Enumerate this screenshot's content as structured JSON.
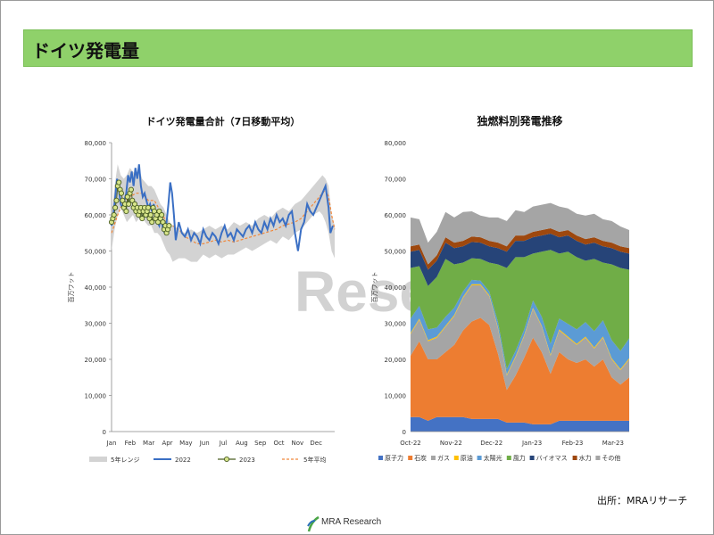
{
  "header": {
    "title": "ドイツ発電量"
  },
  "watermark": "Rese",
  "source": "出所：MRAリサーチ",
  "logo": {
    "text": "MRA Research"
  },
  "chart_data": [
    {
      "type": "line",
      "title": "ドイツ発電量合計（7日移動平均）",
      "ylabel": "百万ワット",
      "ylim": [
        0,
        80000
      ],
      "yticks": [
        0,
        10000,
        20000,
        30000,
        40000,
        50000,
        60000,
        70000,
        80000
      ],
      "ytick_labels": [
        "0",
        "10,000",
        "20,000",
        "30,000",
        "40,000",
        "50,000",
        "60,000",
        "70,000",
        "80,000"
      ],
      "xlim": [
        0,
        365
      ],
      "month_labels": [
        "Jan",
        "Feb",
        "Mar",
        "Apr",
        "May",
        "Jun",
        "Jul",
        "Aug",
        "Sep",
        "Oct",
        "Nov",
        "Dec"
      ],
      "legend_position": "bottom",
      "legend": [
        "5年レンジ",
        "2022",
        "2023",
        "5年平均"
      ],
      "colors": {
        "range": "#d3d3d3",
        "y2022": "#3a6fc4",
        "y2023_line": "#4a5e22",
        "y2023_fill": "#d7e48a",
        "avg": "#f0883c"
      },
      "range_band": {
        "days": [
          0,
          5,
          10,
          15,
          20,
          25,
          30,
          35,
          40,
          45,
          50,
          55,
          60,
          65,
          70,
          75,
          80,
          85,
          90,
          95,
          100,
          110,
          120,
          130,
          140,
          150,
          160,
          170,
          180,
          190,
          200,
          210,
          220,
          230,
          240,
          250,
          260,
          270,
          280,
          290,
          300,
          310,
          320,
          330,
          340,
          345,
          350,
          355,
          360,
          365
        ],
        "low": [
          50000,
          56000,
          60000,
          62000,
          60000,
          58000,
          59000,
          60000,
          58000,
          59000,
          60000,
          58000,
          57000,
          57000,
          55000,
          55000,
          54000,
          52000,
          50000,
          49000,
          47000,
          48000,
          48000,
          47000,
          47000,
          49000,
          48000,
          49000,
          48000,
          49000,
          49000,
          50000,
          51000,
          50000,
          51000,
          52000,
          53000,
          52000,
          54000,
          53000,
          55000,
          56000,
          58000,
          60000,
          61000,
          60000,
          58000,
          55000,
          50000,
          48000
        ],
        "high": [
          60000,
          68000,
          74000,
          71000,
          70000,
          71000,
          73000,
          72000,
          71000,
          73000,
          70000,
          69000,
          68000,
          68000,
          67000,
          65000,
          63000,
          62000,
          60000,
          58000,
          57000,
          56000,
          55000,
          56000,
          55000,
          56000,
          57000,
          56000,
          57000,
          56000,
          58000,
          57000,
          58000,
          57000,
          59000,
          60000,
          59000,
          61000,
          62000,
          61000,
          63000,
          64000,
          66000,
          68000,
          70000,
          71000,
          70000,
          68000,
          60000,
          57000
        ]
      },
      "series": [
        {
          "name": "2022",
          "x": [
            0,
            3,
            6,
            9,
            12,
            15,
            18,
            21,
            24,
            27,
            30,
            33,
            36,
            39,
            42,
            45,
            48,
            51,
            54,
            57,
            60,
            63,
            66,
            69,
            72,
            75,
            78,
            81,
            84,
            87,
            90,
            93,
            96,
            99,
            102,
            105,
            110,
            115,
            120,
            125,
            130,
            135,
            140,
            145,
            150,
            155,
            160,
            165,
            170,
            175,
            180,
            185,
            190,
            195,
            200,
            205,
            210,
            215,
            220,
            225,
            230,
            235,
            240,
            245,
            250,
            255,
            260,
            265,
            270,
            275,
            280,
            285,
            290,
            295,
            300,
            305,
            310,
            315,
            320,
            325,
            330,
            335,
            340,
            345,
            350,
            355,
            358,
            362
          ],
          "values": [
            57000,
            60000,
            65000,
            70000,
            67000,
            63000,
            62000,
            64000,
            66000,
            71000,
            69000,
            72000,
            68000,
            73000,
            70000,
            74000,
            68000,
            65000,
            66000,
            64000,
            62000,
            63000,
            61000,
            63000,
            60000,
            58000,
            57000,
            60000,
            56000,
            55000,
            58000,
            63000,
            69000,
            66000,
            60000,
            53000,
            58000,
            55000,
            54000,
            56000,
            53000,
            55000,
            54000,
            52000,
            56000,
            54000,
            53000,
            55000,
            54000,
            52000,
            55000,
            57000,
            54000,
            55000,
            53000,
            56000,
            55000,
            54000,
            56000,
            57000,
            55000,
            58000,
            56000,
            55000,
            58000,
            56000,
            59000,
            57000,
            60000,
            58000,
            59000,
            57000,
            60000,
            61000,
            55000,
            50000,
            56000,
            58000,
            63000,
            61000,
            60000,
            62000,
            64000,
            66000,
            68000,
            62000,
            55000,
            57000
          ]
        },
        {
          "name": "2023",
          "x": [
            0,
            2,
            4,
            6,
            8,
            10,
            12,
            14,
            16,
            18,
            20,
            22,
            24,
            26,
            28,
            30,
            32,
            34,
            36,
            38,
            40,
            42,
            44,
            46,
            48,
            50,
            52,
            54,
            56,
            58,
            60,
            62,
            64,
            66,
            68,
            70,
            72,
            74,
            76,
            78,
            80,
            82,
            84,
            86,
            88,
            90,
            92,
            94
          ],
          "values": [
            58000,
            59000,
            60000,
            62000,
            64000,
            68000,
            69000,
            67000,
            66000,
            64000,
            62000,
            63000,
            61000,
            65000,
            63000,
            66000,
            67000,
            64000,
            62000,
            63000,
            61000,
            62000,
            60000,
            61000,
            62000,
            59000,
            61000,
            62000,
            60000,
            61000,
            62000,
            59000,
            60000,
            58000,
            62000,
            61000,
            59000,
            60000,
            58000,
            61000,
            59000,
            60000,
            58000,
            56000,
            57000,
            55000,
            56000,
            57000
          ]
        },
        {
          "name": "5年平均",
          "x": [
            0,
            10,
            20,
            30,
            40,
            50,
            60,
            70,
            80,
            90,
            100,
            110,
            120,
            130,
            140,
            150,
            160,
            170,
            180,
            190,
            200,
            210,
            220,
            230,
            240,
            250,
            260,
            270,
            280,
            290,
            300,
            310,
            320,
            330,
            340,
            350,
            355,
            360,
            365
          ],
          "values": [
            55000,
            60000,
            64000,
            65000,
            66000,
            66000,
            64000,
            64000,
            61000,
            58000,
            57000,
            56000,
            54000,
            53000,
            52000,
            52000,
            52500,
            53000,
            52500,
            53000,
            52500,
            53000,
            53500,
            54000,
            54500,
            55000,
            55500,
            56000,
            57000,
            57500,
            58000,
            59000,
            61000,
            63000,
            65000,
            67000,
            65000,
            60000,
            56000
          ]
        }
      ]
    },
    {
      "type": "area",
      "title": "独燃料別発電推移",
      "ylabel": "百万ワット",
      "ylim": [
        0,
        80000
      ],
      "yticks": [
        0,
        10000,
        20000,
        30000,
        40000,
        50000,
        60000,
        70000,
        80000
      ],
      "ytick_labels": [
        "0",
        "10,000",
        "20,000",
        "30,000",
        "40,000",
        "50,000",
        "60,000",
        "70,000",
        "80,000"
      ],
      "x_labels": [
        "Oct-22",
        "Nov-22",
        "Dec-22",
        "Jan-23",
        "Feb-23",
        "Mar-23"
      ],
      "legend_position": "bottom",
      "stacked": true,
      "time": [
        0,
        4,
        8,
        12,
        16,
        20,
        24,
        28,
        32,
        36,
        40,
        44,
        48,
        52,
        56,
        60,
        64,
        68,
        72,
        76,
        80,
        84,
        88,
        92,
        96,
        100
      ],
      "series": [
        {
          "name": "原子力",
          "color": "#4472c4",
          "values": [
            4000,
            4000,
            3000,
            4000,
            4000,
            4000,
            4000,
            3500,
            3500,
            3500,
            3500,
            2500,
            2500,
            2500,
            2000,
            2000,
            2000,
            3000,
            3000,
            3000,
            3000,
            3000,
            3000,
            3000,
            3000,
            3000
          ]
        },
        {
          "name": "石炭",
          "color": "#ed7d31",
          "values": [
            17000,
            21000,
            17000,
            16000,
            18000,
            20000,
            24000,
            27000,
            28000,
            26000,
            18000,
            9000,
            13000,
            18000,
            24000,
            20000,
            14000,
            19000,
            17000,
            16000,
            17000,
            15000,
            17000,
            12000,
            10000,
            12000
          ]
        },
        {
          "name": "ガス",
          "color": "#a5a5a5",
          "values": [
            6000,
            6000,
            5000,
            6000,
            7000,
            8000,
            9000,
            10000,
            9000,
            8000,
            7000,
            4000,
            5000,
            6000,
            8000,
            7000,
            5000,
            6000,
            6000,
            5000,
            6000,
            5000,
            6000,
            5000,
            4000,
            5000
          ]
        },
        {
          "name": "原油",
          "color": "#ffc000",
          "values": [
            300,
            300,
            300,
            300,
            300,
            300,
            300,
            300,
            300,
            300,
            300,
            300,
            300,
            300,
            300,
            300,
            300,
            300,
            300,
            300,
            300,
            300,
            300,
            300,
            300,
            300
          ]
        },
        {
          "name": "太陽光",
          "color": "#5b9bd5",
          "values": [
            4000,
            3500,
            3000,
            2500,
            2500,
            2000,
            1500,
            1200,
            1000,
            1000,
            1500,
            1500,
            1500,
            1500,
            2000,
            2500,
            3000,
            3000,
            3500,
            4000,
            4000,
            4500,
            4500,
            5000,
            5000,
            5500
          ]
        },
        {
          "name": "風力",
          "color": "#70ad47",
          "values": [
            14000,
            11000,
            12000,
            14000,
            16000,
            12000,
            8000,
            6000,
            6000,
            8000,
            16000,
            28000,
            26000,
            20000,
            13000,
            18000,
            26000,
            18000,
            20000,
            20000,
            17000,
            20000,
            16000,
            21000,
            23000,
            19000
          ]
        },
        {
          "name": "バイオマス",
          "color": "#264478",
          "values": [
            4500,
            4500,
            4500,
            4500,
            4500,
            4500,
            4500,
            4500,
            4500,
            4500,
            4500,
            4500,
            4500,
            4500,
            4500,
            4500,
            4500,
            4500,
            4500,
            4500,
            4500,
            4500,
            4500,
            4500,
            4500,
            4500
          ]
        },
        {
          "name": "水力",
          "color": "#9e480e",
          "values": [
            1500,
            1500,
            1500,
            1500,
            1500,
            1500,
            1500,
            1500,
            1500,
            1500,
            1500,
            1500,
            1500,
            1500,
            1500,
            1500,
            1500,
            1500,
            1500,
            1500,
            1500,
            1500,
            1500,
            1500,
            1500,
            1500
          ]
        },
        {
          "name": "その他",
          "color": "#a5a5a5",
          "values": [
            8000,
            7000,
            6000,
            6500,
            7000,
            7000,
            8000,
            7000,
            6000,
            6500,
            7000,
            7000,
            7000,
            6500,
            7000,
            7000,
            7000,
            7000,
            6000,
            6000,
            6500,
            6500,
            6000,
            6000,
            5500,
            5000
          ]
        }
      ]
    }
  ]
}
